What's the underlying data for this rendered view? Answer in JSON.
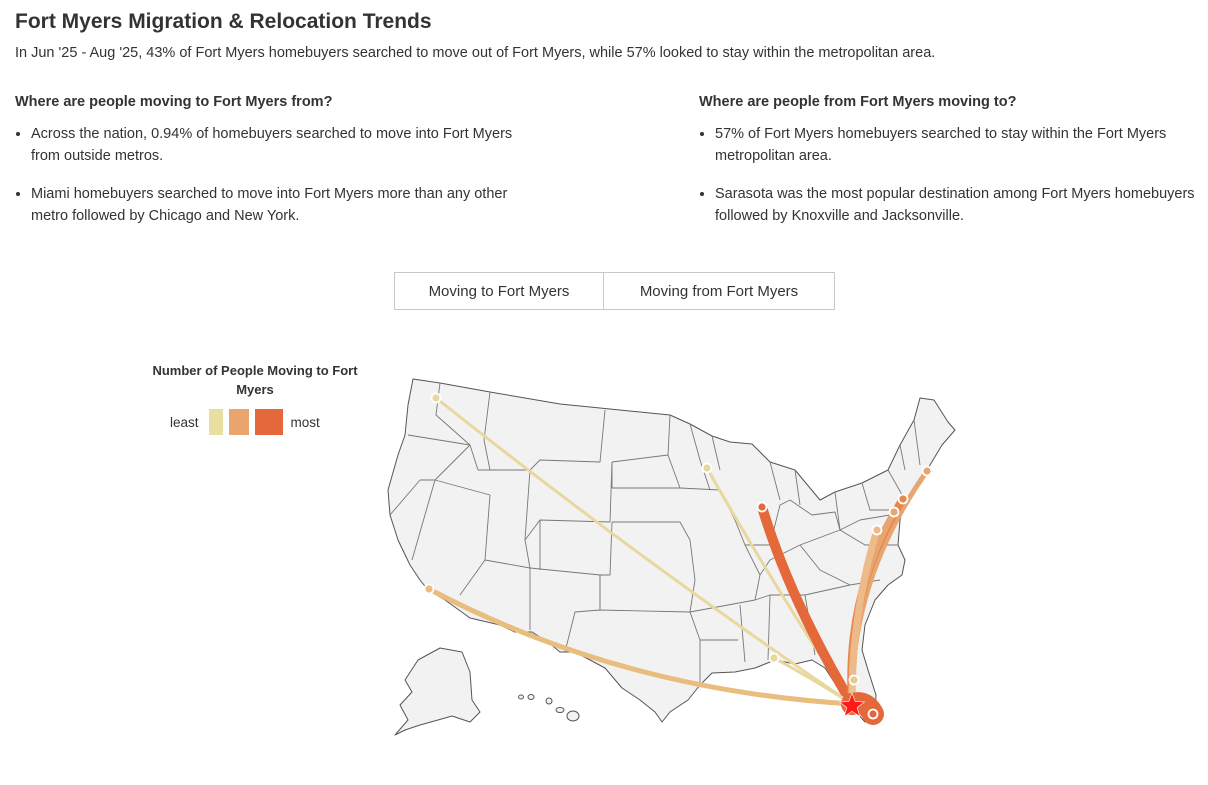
{
  "header": {
    "title": "Fort Myers Migration & Relocation Trends",
    "subtitle": "In Jun '25 - Aug '25, 43% of Fort Myers homebuyers searched to move out of Fort Myers, while 57% looked to stay within the metropolitan area."
  },
  "inbound": {
    "heading": "Where are people moving to Fort Myers from?",
    "bullets": [
      "Across the nation, 0.94% of homebuyers searched to move into Fort Myers from outside metros.",
      "Miami homebuyers searched to move into Fort Myers more than any other metro followed by Chicago and New York."
    ]
  },
  "outbound": {
    "heading": "Where are people from Fort Myers moving to?",
    "bullets": [
      "57% of Fort Myers homebuyers searched to stay within the Fort Myers metropolitan area.",
      "Sarasota was the most popular destination among Fort Myers homebuyers followed by Knoxville and Jacksonville."
    ]
  },
  "tabs": {
    "to_label": "Moving to Fort Myers",
    "from_label": "Moving from Fort Myers"
  },
  "legend": {
    "title": "Number of People Moving to Fort Myers",
    "least": "least",
    "most": "most",
    "colors": [
      "#e8dfa0",
      "#e8a570",
      "#e5683b"
    ]
  },
  "map": {
    "destination_marker_color": "#ff1a1a",
    "land_color": "#f2f2f2",
    "border_color": "#555555"
  }
}
